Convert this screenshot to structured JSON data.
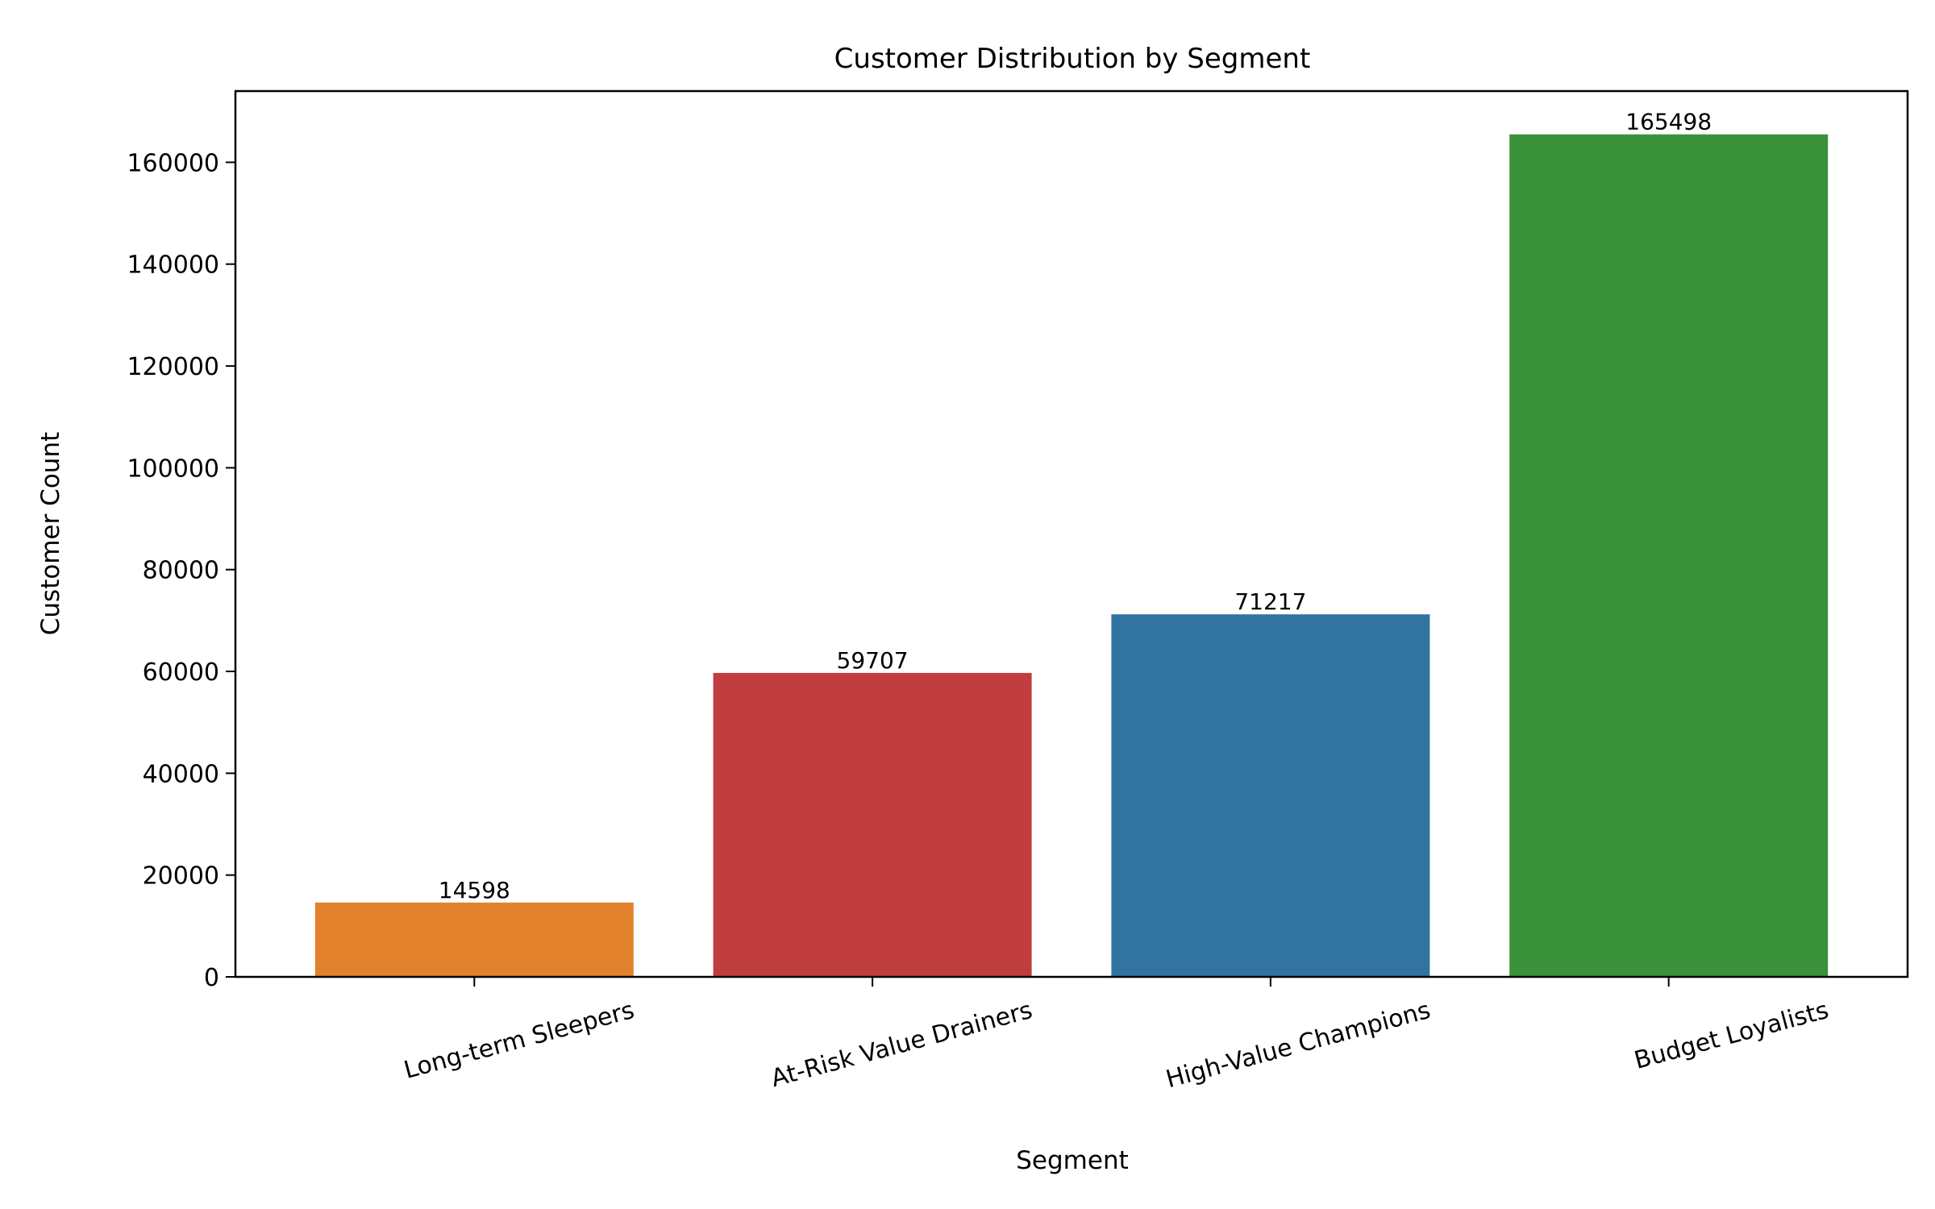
{
  "chart_data": {
    "type": "bar",
    "title": "Customer Distribution by Segment",
    "xlabel": "Segment",
    "ylabel": "Customer Count",
    "categories": [
      "Long-term Sleepers",
      "At-Risk Value Drainers",
      "High-Value Champions",
      "Budget Loyalists"
    ],
    "values": [
      14598,
      59707,
      71217,
      165498
    ],
    "data_labels": [
      "14598",
      "59707",
      "71217",
      "165498"
    ],
    "colors": [
      "#e1812c",
      "#c03d3e",
      "#3274a1",
      "#3a923a"
    ],
    "ylim": [
      0,
      174000
    ],
    "yticks": [
      0,
      20000,
      40000,
      60000,
      80000,
      100000,
      120000,
      140000,
      160000
    ],
    "ytick_labels": [
      "0",
      "20000",
      "40000",
      "60000",
      "80000",
      "100000",
      "120000",
      "140000",
      "160000"
    ],
    "grid": false,
    "legend": "none"
  }
}
